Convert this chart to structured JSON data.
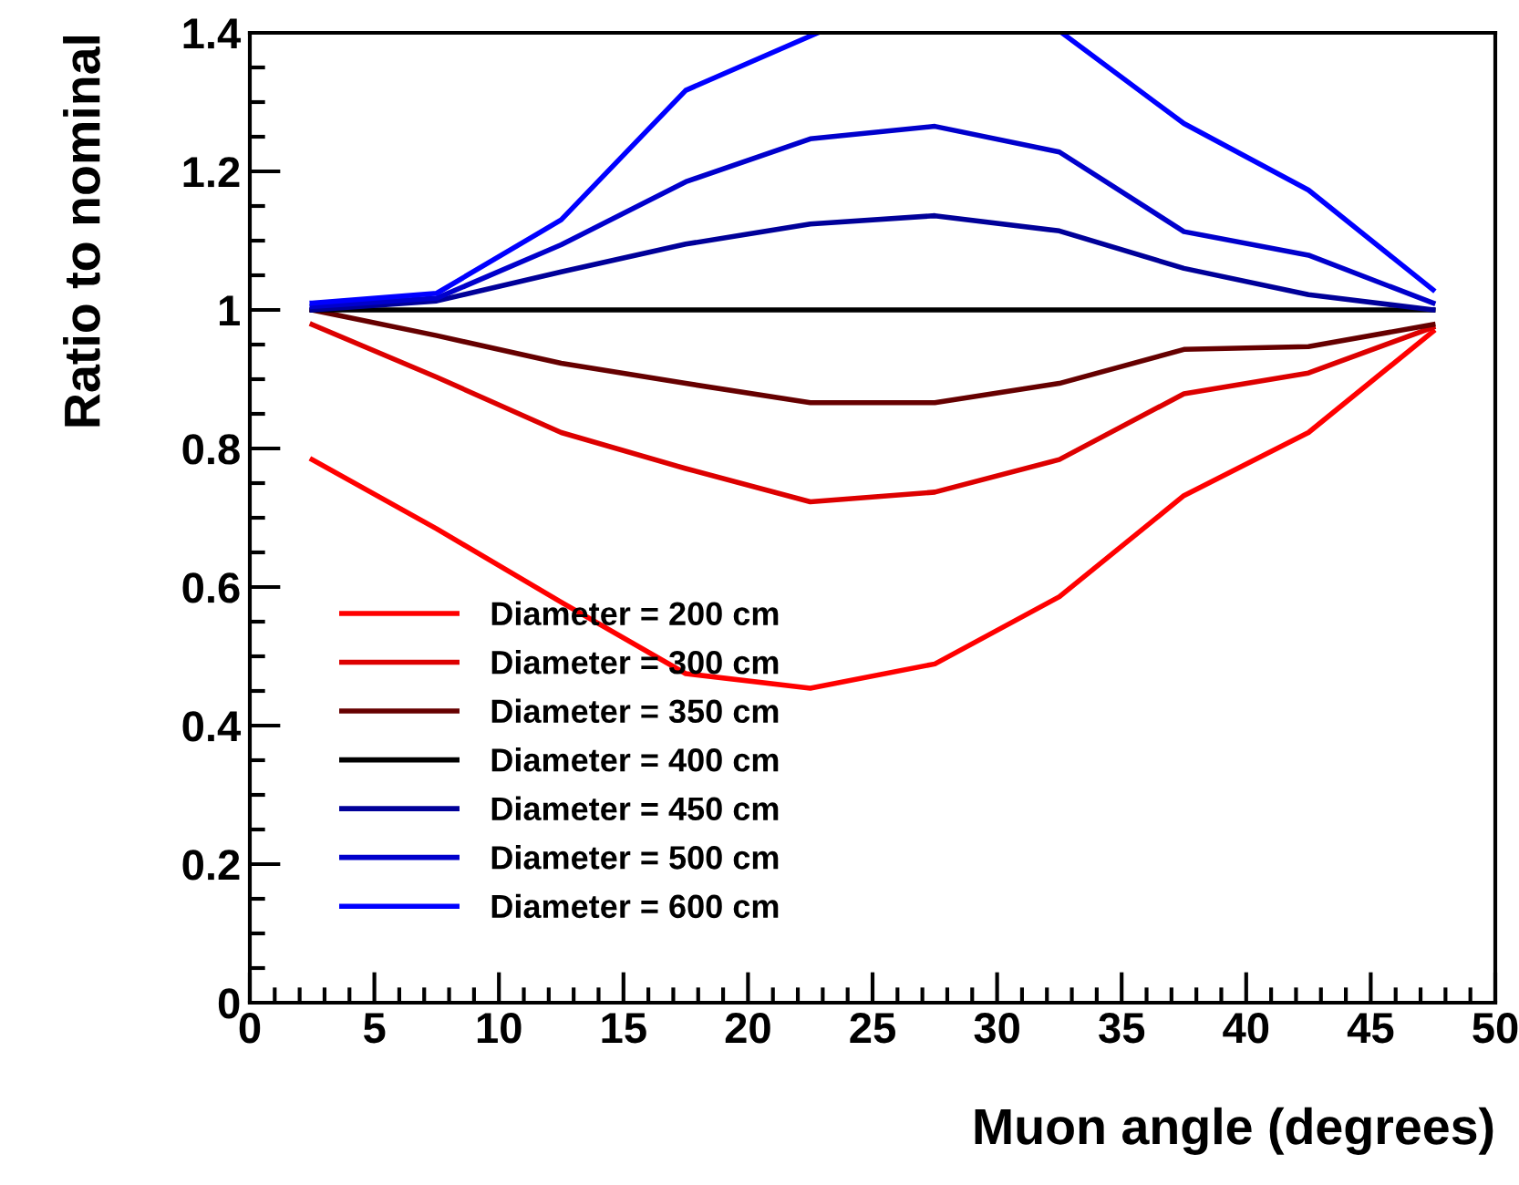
{
  "chart_data": {
    "type": "line",
    "xlabel": "Muon angle (degrees)",
    "ylabel": "Ratio to nominal",
    "x": [
      2.5,
      7.5,
      12.5,
      17.5,
      22.5,
      27.5,
      32.5,
      37.5,
      42.5,
      47.5
    ],
    "series": [
      {
        "name": "Diameter = 200 cm",
        "color": "#ff0000",
        "values": [
          0.784,
          0.684,
          0.578,
          0.475,
          0.454,
          0.489,
          0.586,
          0.732,
          0.823,
          0.969
        ]
      },
      {
        "name": "Diameter = 300 cm",
        "color": "#dd0000",
        "values": [
          0.979,
          0.903,
          0.823,
          0.771,
          0.723,
          0.737,
          0.784,
          0.879,
          0.909,
          0.975
        ]
      },
      {
        "name": "Diameter = 350 cm",
        "color": "#660000",
        "values": [
          1.0,
          0.963,
          0.923,
          0.894,
          0.866,
          0.866,
          0.894,
          0.943,
          0.947,
          0.979
        ]
      },
      {
        "name": "Diameter = 400 cm",
        "color": "#000000",
        "values": [
          1.0,
          1.0,
          1.0,
          1.0,
          1.0,
          1.0,
          1.0,
          1.0,
          1.0,
          1.0
        ]
      },
      {
        "name": "Diameter = 450 cm",
        "color": "#000099",
        "values": [
          1.0,
          1.013,
          1.055,
          1.095,
          1.124,
          1.136,
          1.114,
          1.06,
          1.022,
          1.0
        ]
      },
      {
        "name": "Diameter = 500 cm",
        "color": "#0000cc",
        "values": [
          1.005,
          1.017,
          1.094,
          1.185,
          1.247,
          1.265,
          1.228,
          1.113,
          1.079,
          1.01
        ]
      },
      {
        "name": "Diameter = 600 cm",
        "color": "#0000ff",
        "x": [
          2.5,
          7.5,
          12.5,
          17.5,
          22.8,
          27.5,
          32.6,
          37.5,
          42.5,
          47.5
        ],
        "values": [
          1.01,
          1.024,
          1.13,
          1.317,
          1.4,
          null,
          1.4,
          1.269,
          1.173,
          1.029
        ]
      }
    ],
    "xlim": [
      0,
      50
    ],
    "xticks": [
      0,
      5,
      10,
      15,
      20,
      25,
      30,
      35,
      40,
      45,
      50
    ],
    "ylim": [
      0,
      1.4
    ],
    "yticks": [
      0,
      0.2,
      0.4,
      0.6,
      0.8,
      1,
      1.2,
      1.4
    ],
    "legend": "bottom left",
    "grid": false,
    "marker": "none",
    "line_style": "solid"
  }
}
